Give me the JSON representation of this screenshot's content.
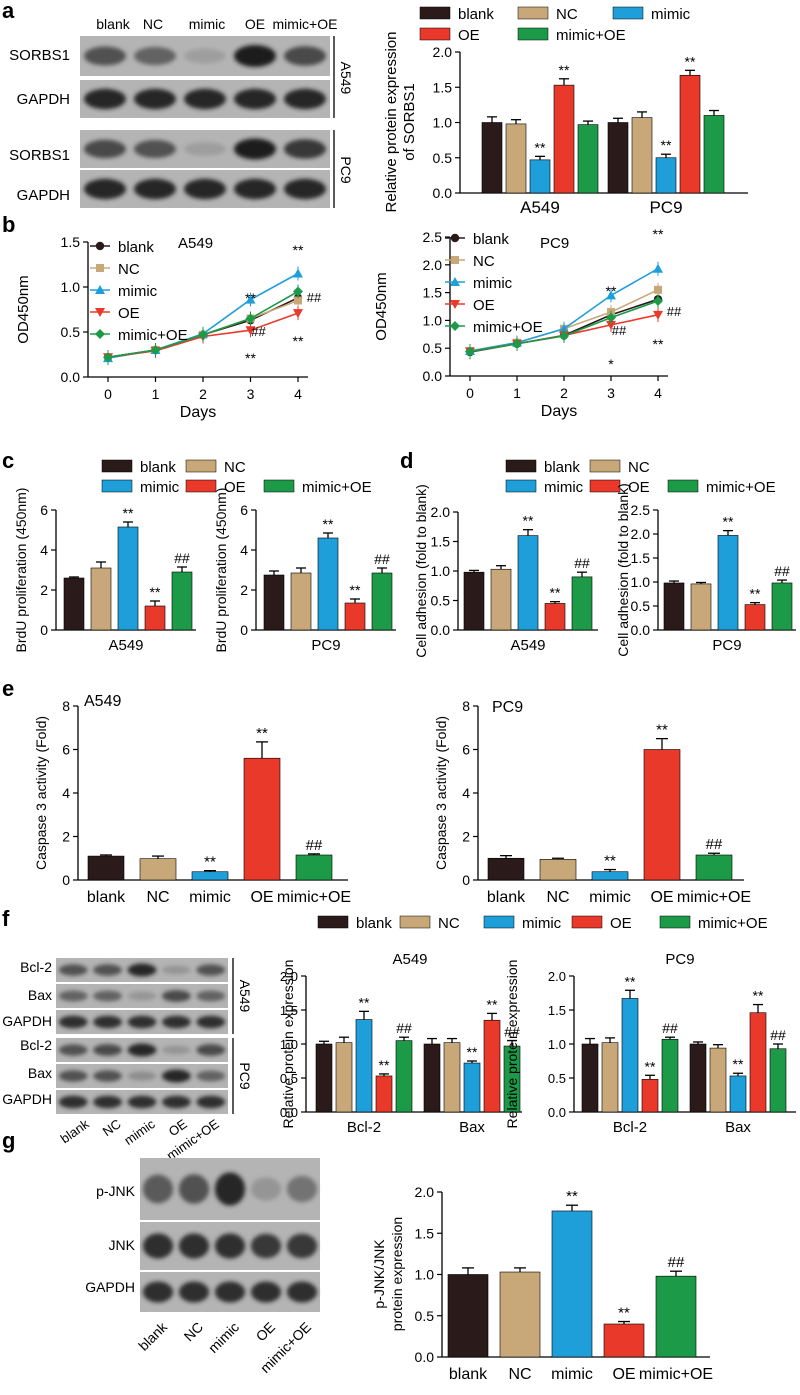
{
  "panels": [
    "a",
    "b",
    "c",
    "d",
    "e",
    "f",
    "g"
  ],
  "colors": {
    "blank": "#2a1a1a",
    "NC": "#c8a878",
    "mimic": "#1e9fd9",
    "OE": "#e8392a",
    "mimic+OE": "#1d9a48"
  },
  "blots": {
    "a": {
      "lanes": [
        "blank",
        "NC",
        "mimic",
        "OE",
        "mimic+OE"
      ],
      "rows_a549": [
        "SORBS1",
        "GAPDH"
      ],
      "rows_pc9": [
        "SORBS1",
        "GAPDH"
      ],
      "cell_a549": "A549",
      "cell_pc9": "PC9"
    },
    "f": {
      "lanes": [
        "blank",
        "NC",
        "mimic",
        "OE",
        "mimic+OE"
      ],
      "rows_a549": [
        "Bcl-2",
        "Bax",
        "GAPDH"
      ],
      "rows_pc9": [
        "Bcl-2",
        "Bax",
        "GAPDH"
      ],
      "cell_a549": "A549",
      "cell_pc9": "PC9"
    },
    "g": {
      "lanes": [
        "blank",
        "NC",
        "mimic",
        "OE",
        "mimic+OE"
      ],
      "rows": [
        "p-JNK",
        "JNK",
        "GAPDH"
      ]
    }
  },
  "legend": [
    "blank",
    "NC",
    "mimic",
    "OE",
    "mimic+OE"
  ],
  "chart_data": [
    {
      "id": "a",
      "type": "bar",
      "categories": [
        "A549",
        "PC9"
      ],
      "ylabel": "Relative protein expression of SORBS1",
      "ylim": [
        0,
        2.0
      ],
      "yticks": [
        "0.0",
        "0.5",
        "1.0",
        "1.5",
        "2.0"
      ],
      "series": [
        {
          "name": "blank",
          "values": [
            1.0,
            1.0
          ],
          "err": [
            0.08,
            0.06
          ]
        },
        {
          "name": "NC",
          "values": [
            0.98,
            1.07
          ],
          "err": [
            0.06,
            0.08
          ]
        },
        {
          "name": "mimic",
          "values": [
            0.47,
            0.5
          ],
          "err": [
            0.05,
            0.05
          ]
        },
        {
          "name": "OE",
          "values": [
            1.53,
            1.67
          ],
          "err": [
            0.09,
            0.07
          ]
        },
        {
          "name": "mimic+OE",
          "values": [
            0.97,
            1.1
          ],
          "err": [
            0.05,
            0.07
          ]
        }
      ],
      "annotations": [
        [
          "",
          "",
          "**",
          "**",
          ""
        ],
        [
          "",
          "",
          "**",
          "**",
          ""
        ]
      ]
    },
    {
      "id": "b1",
      "type": "line",
      "title": "A549",
      "xlabel": "Days",
      "ylabel": "OD450nm",
      "x": [
        0,
        1,
        2,
        3,
        4
      ],
      "xlim": [
        0,
        4
      ],
      "ylim": [
        0,
        1.5
      ],
      "yticks": [
        "0.0",
        "0.5",
        "1.0",
        "1.5"
      ],
      "series": [
        {
          "name": "blank",
          "values": [
            0.22,
            0.3,
            0.47,
            0.63,
            0.88
          ]
        },
        {
          "name": "NC",
          "values": [
            0.21,
            0.3,
            0.47,
            0.65,
            0.85
          ]
        },
        {
          "name": "mimic",
          "values": [
            0.21,
            0.3,
            0.48,
            0.86,
            1.15
          ]
        },
        {
          "name": "OE",
          "values": [
            0.22,
            0.29,
            0.45,
            0.52,
            0.71
          ]
        },
        {
          "name": "mimic+OE",
          "values": [
            0.22,
            0.3,
            0.47,
            0.65,
            0.95
          ]
        }
      ],
      "annotations": [
        "**",
        "##",
        "**",
        "**",
        "##",
        "**"
      ]
    },
    {
      "id": "b2",
      "type": "line",
      "title": "PC9",
      "xlabel": "Days",
      "ylabel": "OD450nm",
      "x": [
        0,
        1,
        2,
        3,
        4
      ],
      "xlim": [
        0,
        4
      ],
      "ylim": [
        0,
        2.5
      ],
      "yticks": [
        "0.0",
        "0.5",
        "1.0",
        "1.5",
        "2.0",
        "2.5"
      ],
      "series": [
        {
          "name": "blank",
          "values": [
            0.43,
            0.58,
            0.73,
            1.1,
            1.38
          ]
        },
        {
          "name": "NC",
          "values": [
            0.45,
            0.6,
            0.85,
            1.15,
            1.55
          ]
        },
        {
          "name": "mimic",
          "values": [
            0.45,
            0.6,
            0.85,
            1.45,
            1.93
          ]
        },
        {
          "name": "OE",
          "values": [
            0.44,
            0.58,
            0.73,
            0.92,
            1.1
          ]
        },
        {
          "name": "mimic+OE",
          "values": [
            0.44,
            0.58,
            0.72,
            1.05,
            1.35
          ]
        }
      ],
      "annotations": [
        "**",
        "##",
        "*",
        "**",
        "##",
        "**"
      ]
    },
    {
      "id": "c1",
      "type": "bar",
      "categories": [
        "A549"
      ],
      "ylabel": "BrdU proliferation (450nm)",
      "ylim": [
        0,
        6
      ],
      "yticks": [
        "0",
        "2",
        "4",
        "6"
      ],
      "series": [
        {
          "name": "blank",
          "values": [
            2.6
          ],
          "err": [
            0.05
          ]
        },
        {
          "name": "NC",
          "values": [
            3.1
          ],
          "err": [
            0.3
          ]
        },
        {
          "name": "mimic",
          "values": [
            5.15
          ],
          "err": [
            0.25
          ]
        },
        {
          "name": "OE",
          "values": [
            1.2
          ],
          "err": [
            0.25
          ]
        },
        {
          "name": "mimic+OE",
          "values": [
            2.9
          ],
          "err": [
            0.25
          ]
        }
      ],
      "annotations": [
        [
          "",
          "",
          "**",
          "**",
          "##"
        ]
      ]
    },
    {
      "id": "c2",
      "type": "bar",
      "categories": [
        "PC9"
      ],
      "ylabel": "BrdU proliferation (450nm)",
      "ylim": [
        0,
        6
      ],
      "yticks": [
        "0",
        "2",
        "4",
        "6"
      ],
      "series": [
        {
          "name": "blank",
          "values": [
            2.75
          ],
          "err": [
            0.2
          ]
        },
        {
          "name": "NC",
          "values": [
            2.85
          ],
          "err": [
            0.25
          ]
        },
        {
          "name": "mimic",
          "values": [
            4.6
          ],
          "err": [
            0.25
          ]
        },
        {
          "name": "OE",
          "values": [
            1.35
          ],
          "err": [
            0.2
          ]
        },
        {
          "name": "mimic+OE",
          "values": [
            2.85
          ],
          "err": [
            0.25
          ]
        }
      ],
      "annotations": [
        [
          "",
          "",
          "**",
          "**",
          "##"
        ]
      ]
    },
    {
      "id": "d1",
      "type": "bar",
      "categories": [
        "A549"
      ],
      "ylabel": "Cell adhesion (fold to blank)",
      "ylim": [
        0,
        2.0
      ],
      "yticks": [
        "0.0",
        "0.5",
        "1.0",
        "1.5",
        "2.0"
      ],
      "series": [
        {
          "name": "blank",
          "values": [
            0.98
          ],
          "err": [
            0.03
          ]
        },
        {
          "name": "NC",
          "values": [
            1.03
          ],
          "err": [
            0.06
          ]
        },
        {
          "name": "mimic",
          "values": [
            1.6
          ],
          "err": [
            0.1
          ]
        },
        {
          "name": "OE",
          "values": [
            0.45
          ],
          "err": [
            0.03
          ]
        },
        {
          "name": "mimic+OE",
          "values": [
            0.9
          ],
          "err": [
            0.08
          ]
        }
      ],
      "annotations": [
        [
          "",
          "",
          "**",
          "**",
          "##"
        ]
      ]
    },
    {
      "id": "d2",
      "type": "bar",
      "categories": [
        "PC9"
      ],
      "ylabel": "Cell adhesion (fold to blank)",
      "ylim": [
        0,
        2.5
      ],
      "yticks": [
        "0.0",
        "0.5",
        "1.0",
        "1.5",
        "2.0",
        "2.5"
      ],
      "series": [
        {
          "name": "blank",
          "values": [
            0.98
          ],
          "err": [
            0.04
          ]
        },
        {
          "name": "NC",
          "values": [
            0.96
          ],
          "err": [
            0.03
          ]
        },
        {
          "name": "mimic",
          "values": [
            1.97
          ],
          "err": [
            0.1
          ]
        },
        {
          "name": "OE",
          "values": [
            0.53
          ],
          "err": [
            0.04
          ]
        },
        {
          "name": "mimic+OE",
          "values": [
            0.98
          ],
          "err": [
            0.06
          ]
        }
      ],
      "annotations": [
        [
          "",
          "",
          "**",
          "**",
          "##"
        ]
      ]
    },
    {
      "id": "e1",
      "type": "bar",
      "title": "A549",
      "categories": [
        "blank",
        "NC",
        "mimic",
        "OE",
        "mimic+OE"
      ],
      "ylabel": "Caspase 3 activity (Fold)",
      "ylim": [
        0,
        8
      ],
      "yticks": [
        "0",
        "2",
        "4",
        "6",
        "8"
      ],
      "series": [
        {
          "name": "Caspase 3",
          "values": [
            1.1,
            0.98,
            0.38,
            5.6,
            1.15
          ],
          "err": [
            0.05,
            0.12,
            0.05,
            0.75,
            0.05
          ]
        }
      ],
      "annotations": [
        [
          "",
          "",
          "**",
          "**",
          "##"
        ]
      ]
    },
    {
      "id": "e2",
      "type": "bar",
      "title": "PC9",
      "categories": [
        "blank",
        "NC",
        "mimic",
        "OE",
        "mimic+OE"
      ],
      "ylabel": "Caspase 3 activity (Fold)",
      "ylim": [
        0,
        8
      ],
      "yticks": [
        "0",
        "2",
        "4",
        "6",
        "8"
      ],
      "series": [
        {
          "name": "Caspase 3",
          "values": [
            1.0,
            0.95,
            0.38,
            6.0,
            1.15
          ],
          "err": [
            0.12,
            0.05,
            0.1,
            0.5,
            0.08
          ]
        }
      ],
      "annotations": [
        [
          "",
          "",
          "**",
          "**",
          "##"
        ]
      ]
    },
    {
      "id": "f1",
      "type": "bar",
      "title": "A549",
      "categories": [
        "Bcl-2",
        "Bax"
      ],
      "ylabel": "Relative protein expression",
      "ylim": [
        0,
        2.0
      ],
      "yticks": [
        "0.0",
        "0.5",
        "1.0",
        "1.5",
        "2.0"
      ],
      "series": [
        {
          "name": "blank",
          "values": [
            1.0,
            1.0
          ],
          "err": [
            0.04,
            0.08
          ]
        },
        {
          "name": "NC",
          "values": [
            1.02,
            1.02
          ],
          "err": [
            0.08,
            0.06
          ]
        },
        {
          "name": "mimic",
          "values": [
            1.36,
            0.72
          ],
          "err": [
            0.12,
            0.03
          ]
        },
        {
          "name": "OE",
          "values": [
            0.53,
            1.35
          ],
          "err": [
            0.03,
            0.1
          ]
        },
        {
          "name": "mimic+OE",
          "values": [
            1.05,
            0.97
          ],
          "err": [
            0.05,
            0.08
          ]
        }
      ],
      "annotations": [
        [
          "",
          "",
          "**",
          "**",
          "##"
        ],
        [
          "",
          "",
          "**",
          "**",
          "##"
        ]
      ]
    },
    {
      "id": "f2",
      "type": "bar",
      "title": "PC9",
      "categories": [
        "Bcl-2",
        "Bax"
      ],
      "ylabel": "Relative protein expression",
      "ylim": [
        0,
        2.0
      ],
      "yticks": [
        "0.0",
        "0.5",
        "1.0",
        "1.5",
        "2.0"
      ],
      "series": [
        {
          "name": "blank",
          "values": [
            1.0,
            1.0
          ],
          "err": [
            0.08,
            0.03
          ]
        },
        {
          "name": "NC",
          "values": [
            1.02,
            0.94
          ],
          "err": [
            0.07,
            0.05
          ]
        },
        {
          "name": "mimic",
          "values": [
            1.67,
            0.53
          ],
          "err": [
            0.12,
            0.04
          ]
        },
        {
          "name": "OE",
          "values": [
            0.48,
            1.46
          ],
          "err": [
            0.06,
            0.12
          ]
        },
        {
          "name": "mimic+OE",
          "values": [
            1.07,
            0.93
          ],
          "err": [
            0.03,
            0.07
          ]
        }
      ],
      "annotations": [
        [
          "",
          "",
          "**",
          "**",
          "##"
        ],
        [
          "",
          "",
          "**",
          "**",
          "##"
        ]
      ]
    },
    {
      "id": "g",
      "type": "bar",
      "categories": [
        "blank",
        "NC",
        "mimic",
        "OE",
        "mimic+OE"
      ],
      "ylabel": "p-JNK/JNK protein expression",
      "ylim": [
        0,
        2.0
      ],
      "yticks": [
        "0.0",
        "0.5",
        "1.0",
        "1.5",
        "2.0"
      ],
      "series": [
        {
          "name": "p-JNK/JNK",
          "values": [
            1.0,
            1.03,
            1.77,
            0.4,
            0.98
          ],
          "err": [
            0.08,
            0.05,
            0.07,
            0.03,
            0.06
          ]
        }
      ],
      "annotations": [
        [
          "",
          "",
          "**",
          "**",
          "##"
        ]
      ]
    }
  ]
}
